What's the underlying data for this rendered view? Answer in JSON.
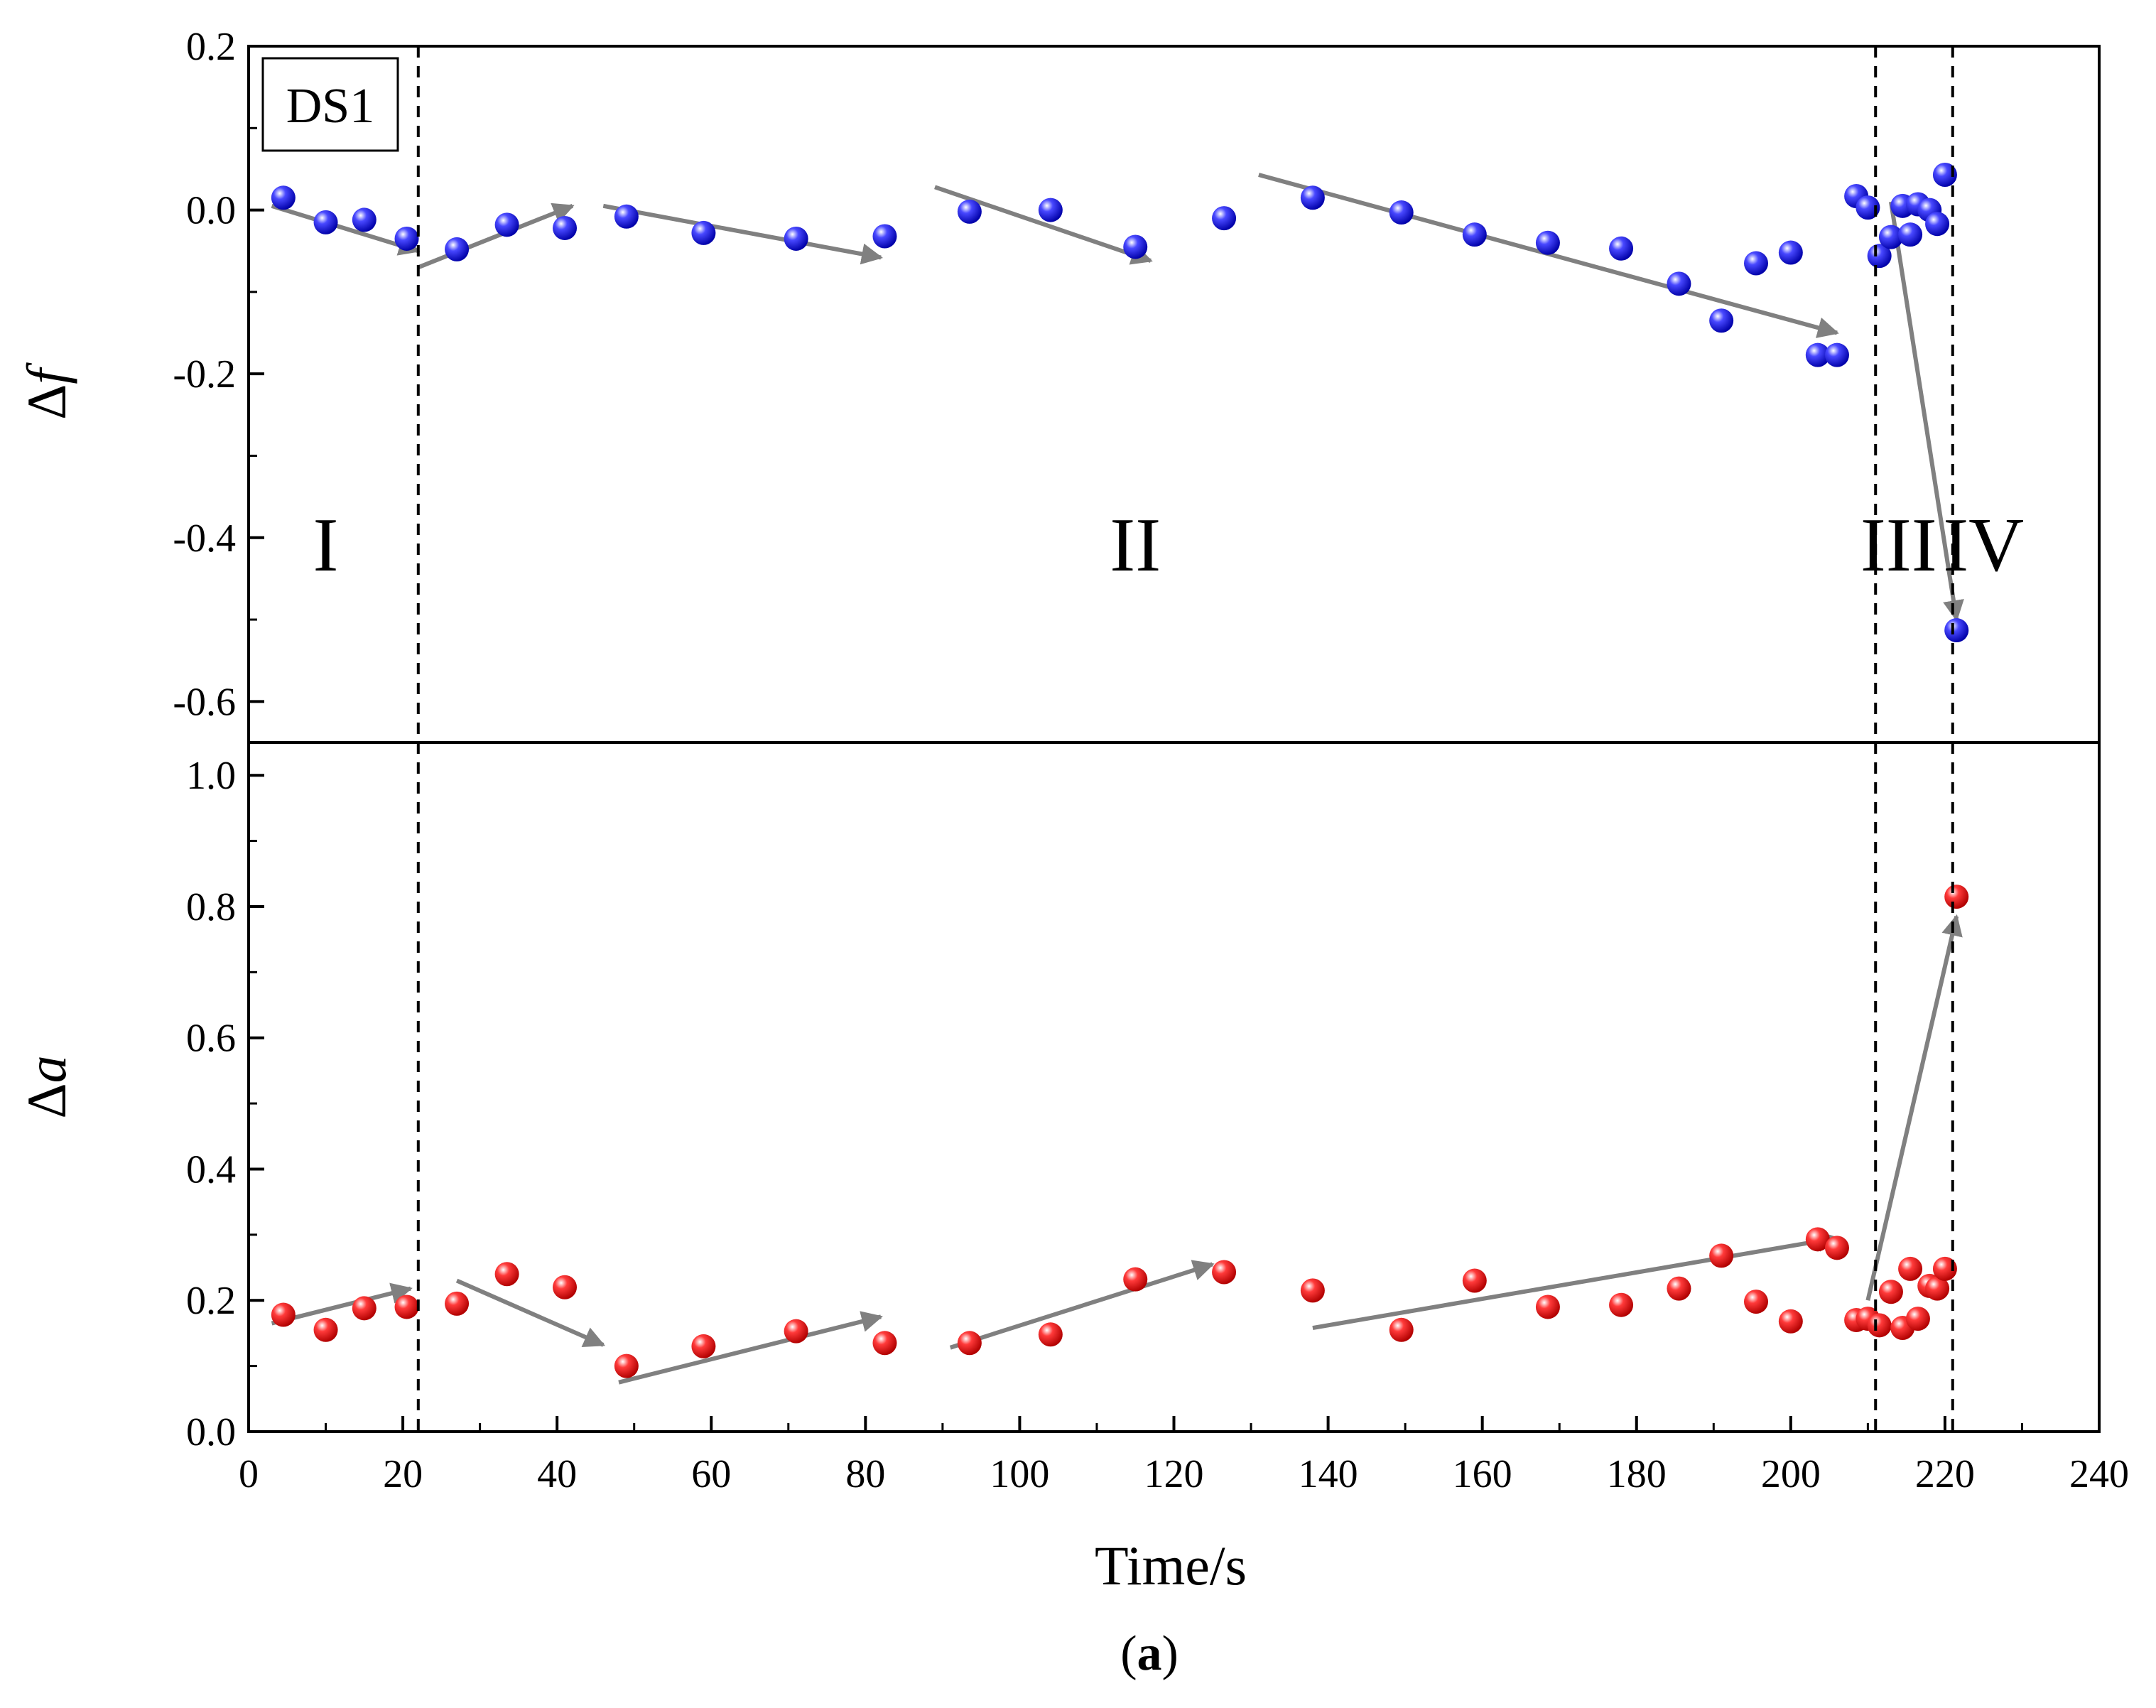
{
  "chart_data": [
    {
      "panel": "top",
      "type": "scatter",
      "ylabel": "Δf",
      "ylim": [
        -0.65,
        0.2
      ],
      "yticks": [
        0.2,
        0.0,
        -0.2,
        -0.4,
        -0.6
      ],
      "ytick_labels": [
        "0.2",
        "0.0",
        "-0.2",
        "-0.4",
        "-0.6"
      ],
      "xlim": [
        0,
        240
      ],
      "marker_color": "#1010e0",
      "box_label": "DS1",
      "phase_labels": [
        {
          "text": "I",
          "x": 10,
          "y": -0.44
        },
        {
          "text": "II",
          "x": 115,
          "y": -0.44
        },
        {
          "text": "III",
          "x": 214,
          "y": -0.44
        },
        {
          "text": "IV",
          "x": 225,
          "y": -0.44
        }
      ],
      "series": [
        {
          "name": "Δf",
          "x": [
            4.5,
            10,
            15,
            20.5,
            27,
            33.5,
            41,
            49,
            59,
            71,
            82.5,
            93.5,
            104,
            115,
            126.5,
            138,
            149.5,
            159,
            168.5,
            178,
            185.5,
            191,
            195.5,
            200,
            203.5,
            206,
            208.5,
            210,
            211.5,
            213,
            214.5,
            215.5,
            216.5,
            218,
            219,
            220,
            221.5
          ],
          "y": [
            0.015,
            -0.015,
            -0.012,
            -0.035,
            -0.048,
            -0.018,
            -0.022,
            -0.008,
            -0.028,
            -0.035,
            -0.032,
            -0.002,
            0.0,
            -0.045,
            -0.01,
            0.015,
            -0.003,
            -0.03,
            -0.04,
            -0.047,
            -0.09,
            -0.135,
            -0.065,
            -0.052,
            -0.177,
            -0.177,
            0.017,
            0.003,
            -0.056,
            -0.033,
            0.005,
            -0.03,
            0.007,
            0.0,
            -0.017,
            0.043,
            -0.513
          ]
        }
      ],
      "arrows": [
        {
          "from": [
            3,
            0.005
          ],
          "to": [
            22,
            -0.05
          ]
        },
        {
          "from": [
            22,
            -0.07
          ],
          "to": [
            42,
            0.005
          ]
        },
        {
          "from": [
            46,
            0.005
          ],
          "to": [
            82,
            -0.058
          ]
        },
        {
          "from": [
            89,
            0.028
          ],
          "to": [
            117,
            -0.062
          ]
        },
        {
          "from": [
            131,
            0.043
          ],
          "to": [
            206,
            -0.15
          ]
        },
        {
          "from": [
            213,
            0.01
          ],
          "to": [
            221.5,
            -0.5
          ]
        }
      ]
    },
    {
      "panel": "bottom",
      "type": "scatter",
      "ylabel": "Δa",
      "ylim": [
        0.0,
        1.05
      ],
      "yticks": [
        0.0,
        0.2,
        0.4,
        0.6,
        0.8,
        1.0
      ],
      "ytick_labels": [
        "0.0",
        "0.2",
        "0.4",
        "0.6",
        "0.8",
        "1.0"
      ],
      "xlim": [
        0,
        240
      ],
      "xticks": [
        0,
        20,
        40,
        60,
        80,
        100,
        120,
        140,
        160,
        180,
        200,
        220,
        240
      ],
      "xtick_labels": [
        "0",
        "20",
        "40",
        "60",
        "80",
        "100",
        "120",
        "140",
        "160",
        "180",
        "200",
        "220",
        "240"
      ],
      "xlabel": "Time/s",
      "marker_color": "#e01010",
      "series": [
        {
          "name": "Δa",
          "x": [
            4.5,
            10,
            15,
            20.5,
            27,
            33.5,
            41,
            49,
            59,
            71,
            82.5,
            93.5,
            104,
            115,
            126.5,
            138,
            149.5,
            159,
            168.5,
            178,
            185.5,
            191,
            195.5,
            200,
            203.5,
            206,
            208.5,
            210,
            211.5,
            213,
            214.5,
            215.5,
            216.5,
            218,
            219,
            220,
            221.5
          ],
          "y": [
            0.178,
            0.155,
            0.188,
            0.19,
            0.195,
            0.24,
            0.22,
            0.1,
            0.13,
            0.153,
            0.135,
            0.135,
            0.148,
            0.232,
            0.243,
            0.215,
            0.155,
            0.23,
            0.19,
            0.193,
            0.218,
            0.268,
            0.198,
            0.168,
            0.293,
            0.28,
            0.17,
            0.172,
            0.162,
            0.213,
            0.158,
            0.248,
            0.172,
            0.222,
            0.218,
            0.248,
            0.815
          ]
        }
      ],
      "arrows": [
        {
          "from": [
            3,
            0.165
          ],
          "to": [
            21,
            0.218
          ]
        },
        {
          "from": [
            27,
            0.23
          ],
          "to": [
            46,
            0.132
          ]
        },
        {
          "from": [
            48,
            0.075
          ],
          "to": [
            82,
            0.175
          ]
        },
        {
          "from": [
            91,
            0.128
          ],
          "to": [
            125,
            0.255
          ]
        },
        {
          "from": [
            138,
            0.158
          ],
          "to": [
            206,
            0.295
          ]
        },
        {
          "from": [
            210,
            0.2
          ],
          "to": [
            221.5,
            0.785
          ]
        }
      ]
    }
  ],
  "shared": {
    "vlines_x": [
      22,
      211,
      221
    ],
    "caption_letter": "a"
  }
}
